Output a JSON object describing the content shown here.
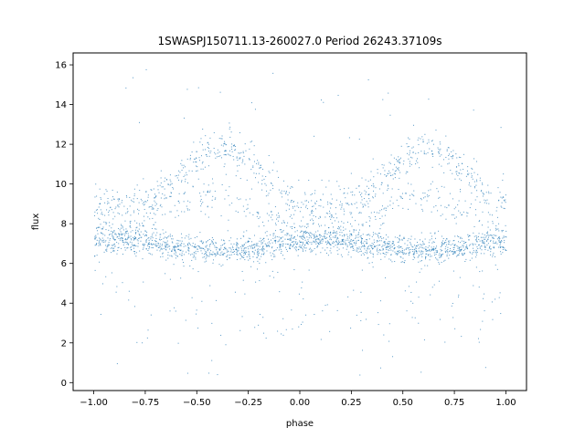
{
  "chart_data": {
    "type": "scatter",
    "title": "1SWASPJ150711.13-260027.0 Period 26243.37109s",
    "xlabel": "phase",
    "ylabel": "flux",
    "xlim": [
      -1.1,
      1.1
    ],
    "ylim": [
      -0.4,
      16.6
    ],
    "x_ticks": [
      -1.0,
      -0.75,
      -0.5,
      -0.25,
      0.0,
      0.25,
      0.5,
      0.75,
      1.0
    ],
    "x_tick_labels": [
      "−1.00",
      "−0.75",
      "−0.50",
      "−0.25",
      "0.00",
      "0.25",
      "0.50",
      "0.75",
      "1.00"
    ],
    "y_ticks": [
      0,
      2,
      4,
      6,
      8,
      10,
      12,
      14,
      16
    ],
    "y_tick_labels": [
      "0",
      "2",
      "4",
      "6",
      "8",
      "10",
      "12",
      "14",
      "16"
    ],
    "grid": false,
    "marker_color": "#1f77b4",
    "series": [
      {
        "description_points": "phase-folded light curve, period 1.0 repeated over phase -1..1",
        "components": [
          {
            "phase_range": [
              -1.0,
              1.0
            ],
            "flux_center_min": 6.5,
            "flux_center_max": 7.4,
            "note": "dense baseline band"
          },
          {
            "phase_peak": -0.38,
            "flux_peak": 12.0,
            "flux_at_edges": 9.5
          },
          {
            "phase_peak": 0.62,
            "flux_peak": 12.0,
            "flux_at_edges": 9.5
          },
          {
            "phase_peak": -0.45,
            "flux_peak": 9.0
          },
          {
            "phase_peak": 0.55,
            "flux_peak": 9.0
          }
        ],
        "outliers_flux_range": [
          0.2,
          15.9
        ]
      }
    ]
  }
}
